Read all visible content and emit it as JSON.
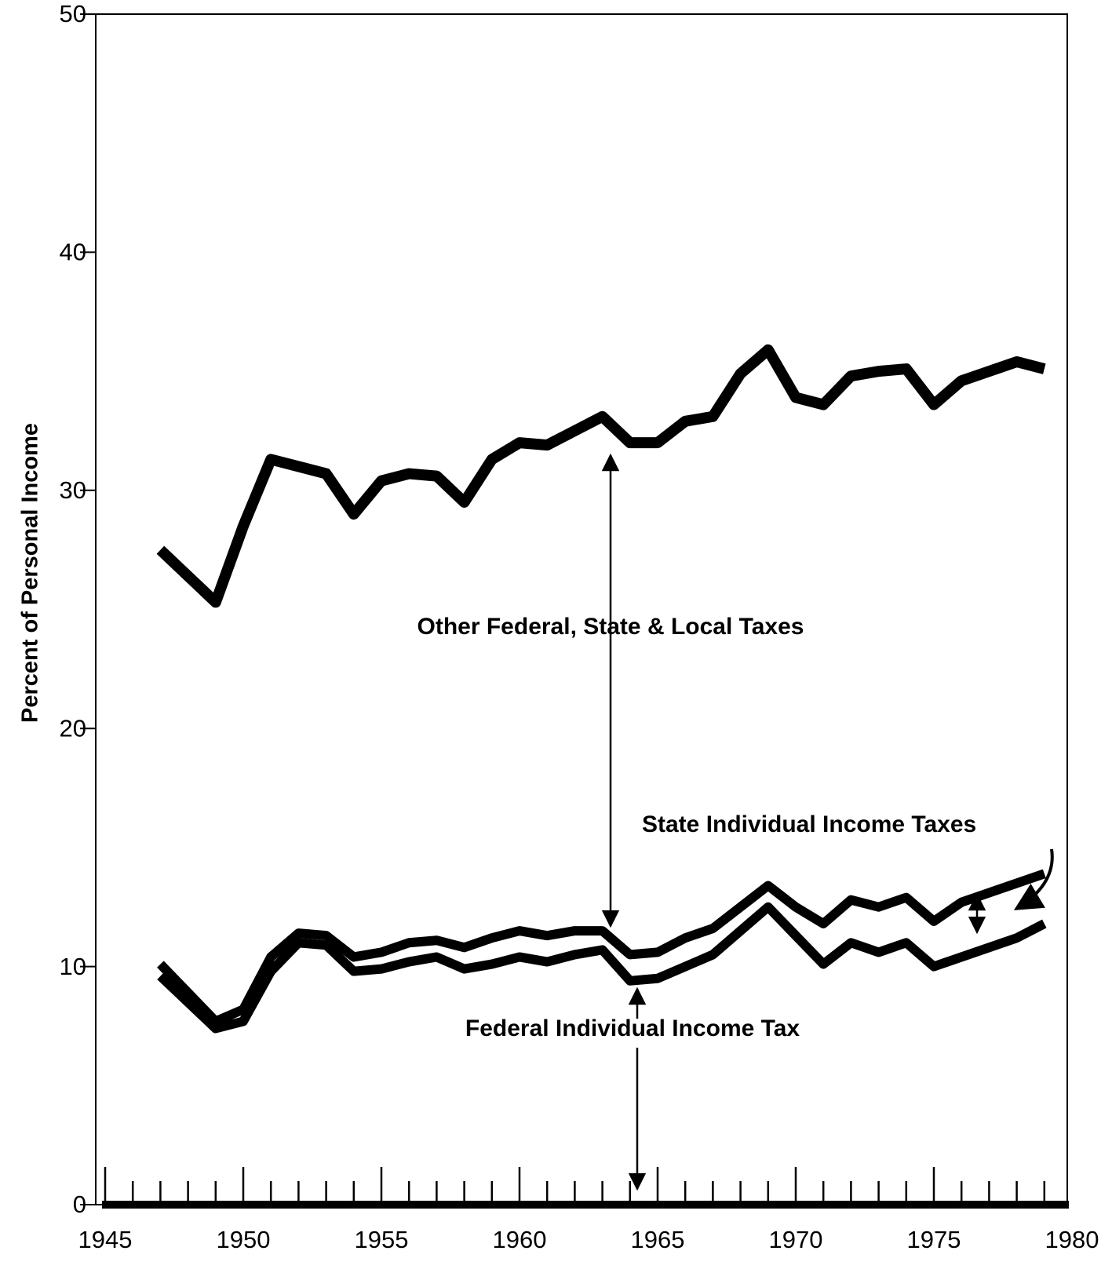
{
  "chart_data": {
    "type": "stacked_line",
    "y_label": "Percent of Personal Income",
    "x": [
      1947,
      1948,
      1949,
      1950,
      1951,
      1952,
      1953,
      1954,
      1955,
      1956,
      1957,
      1958,
      1959,
      1960,
      1961,
      1962,
      1963,
      1964,
      1965,
      1966,
      1967,
      1968,
      1969,
      1970,
      1971,
      1972,
      1973,
      1974,
      1975,
      1976,
      1977,
      1978,
      1979
    ],
    "series": [
      {
        "name": "Federal Individual Income Tax",
        "color": "#000000",
        "values": [
          9.6,
          8.5,
          7.4,
          7.7,
          9.8,
          11.0,
          10.9,
          9.8,
          9.9,
          10.2,
          10.4,
          9.9,
          10.1,
          10.4,
          10.2,
          10.5,
          10.7,
          9.4,
          9.5,
          10.0,
          10.5,
          11.5,
          12.5,
          11.3,
          10.1,
          11.0,
          10.6,
          11.0,
          10.0,
          10.4,
          10.8,
          11.2,
          11.8
        ]
      },
      {
        "name": "State Individual Income Taxes",
        "color": "#000000",
        "values": [
          0.5,
          0.4,
          0.3,
          0.5,
          0.6,
          0.4,
          0.4,
          0.6,
          0.7,
          0.8,
          0.7,
          0.9,
          1.1,
          1.1,
          1.1,
          1.0,
          0.8,
          1.1,
          1.1,
          1.2,
          1.1,
          1.0,
          0.9,
          1.2,
          1.7,
          1.8,
          1.9,
          1.9,
          1.9,
          2.3,
          2.3,
          2.3,
          2.1
        ]
      },
      {
        "name": "Other Federal, State & Local Taxes",
        "color": "#000000",
        "values": [
          17.4,
          17.5,
          17.6,
          20.3,
          20.9,
          19.6,
          19.4,
          18.6,
          19.8,
          19.7,
          19.5,
          18.7,
          20.1,
          20.5,
          20.6,
          21.0,
          21.6,
          21.5,
          21.4,
          21.7,
          21.5,
          22.4,
          22.5,
          21.4,
          21.8,
          22.0,
          22.5,
          22.2,
          21.7,
          21.9,
          21.9,
          21.9,
          21.2
        ]
      }
    ],
    "xlim": [
      1945,
      1980
    ],
    "xticks": [
      1945,
      1950,
      1955,
      1960,
      1965,
      1970,
      1975,
      1980
    ],
    "xminorticks": [
      1946,
      1947,
      1948,
      1949,
      1951,
      1952,
      1953,
      1954,
      1956,
      1957,
      1958,
      1959,
      1961,
      1962,
      1963,
      1964,
      1966,
      1967,
      1968,
      1969,
      1971,
      1972,
      1973,
      1974,
      1976,
      1977,
      1978,
      1979
    ],
    "ylim": [
      0,
      50
    ],
    "yticks": [
      0,
      10,
      20,
      30,
      40,
      50
    ],
    "grid": false
  }
}
